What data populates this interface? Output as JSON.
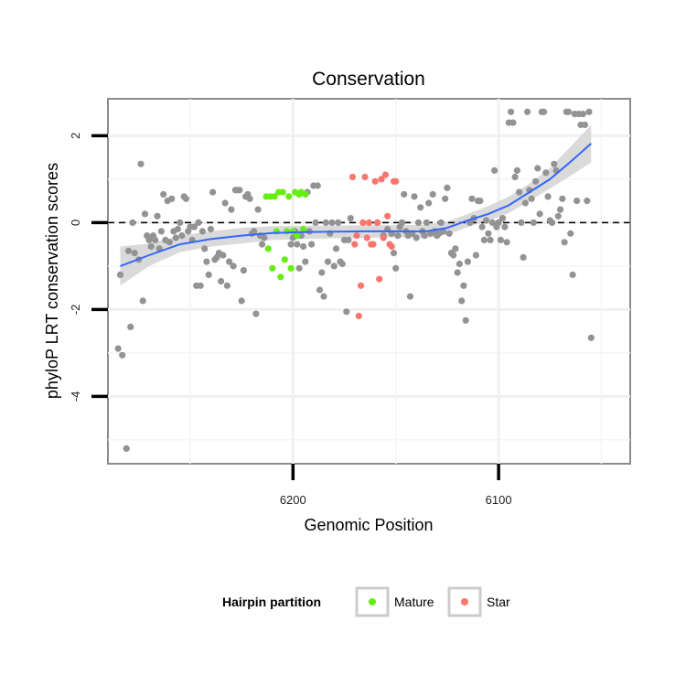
{
  "chart_data": {
    "type": "scatter",
    "title": "Conservation",
    "xlabel": "Genomic Position",
    "ylabel": "phyloP LRT conservation scores",
    "xlim": [
      6290,
      6036
    ],
    "ylim": [
      -5.55,
      2.85
    ],
    "x_reversed": true,
    "x_ticks": [
      6200,
      6100
    ],
    "x_tick_labels": [
      "6200",
      "6100"
    ],
    "y_ticks": [
      2,
      0,
      -2,
      -4
    ],
    "y_tick_labels": [
      "2",
      "0",
      "-2",
      "-4"
    ],
    "grid": true,
    "reference_line": {
      "y": 0,
      "style": "dashed"
    },
    "legend": {
      "title": "Hairpin partition",
      "placement": "bottom",
      "entries": [
        {
          "label": "Mature",
          "color": "#66ee11"
        },
        {
          "label": "Star",
          "color": "#f8766d"
        }
      ]
    },
    "colors": {
      "other": "#939393",
      "Mature": "#66ee11",
      "Star": "#f8766d",
      "smooth": "#3366ff",
      "band": "#d3d3d3"
    },
    "series": [
      {
        "group": "other",
        "points": [
          [
            6285,
            -2.9
          ],
          [
            6284,
            -1.2
          ],
          [
            6283,
            -3.05
          ],
          [
            6281,
            -5.2
          ],
          [
            6280,
            -0.65
          ],
          [
            6279,
            -2.4
          ],
          [
            6278,
            0.0
          ],
          [
            6277,
            -0.7
          ],
          [
            6275,
            -0.85
          ],
          [
            6274,
            1.35
          ],
          [
            6273,
            -1.8
          ],
          [
            6272,
            0.2
          ],
          [
            6271,
            -0.3
          ],
          [
            6270,
            -0.4
          ],
          [
            6269,
            -0.55
          ],
          [
            6268,
            -0.3
          ],
          [
            6267,
            -0.4
          ],
          [
            6266,
            0.15
          ],
          [
            6265,
            -0.6
          ],
          [
            6264,
            -0.2
          ],
          [
            6263,
            0.65
          ],
          [
            6262,
            -0.4
          ],
          [
            6261,
            0.5
          ],
          [
            6260,
            -0.45
          ],
          [
            6259,
            0.55
          ],
          [
            6258,
            -0.2
          ],
          [
            6257,
            -0.35
          ],
          [
            6256,
            -0.15
          ],
          [
            6255,
            0.0
          ],
          [
            6254,
            -0.3
          ],
          [
            6253,
            0.6
          ],
          [
            6252,
            0.55
          ],
          [
            6251,
            -0.2
          ],
          [
            6250,
            -0.1
          ],
          [
            6249,
            -0.4
          ],
          [
            6248,
            -0.1
          ],
          [
            6247,
            -1.45
          ],
          [
            6246,
            0.0
          ],
          [
            6245,
            -1.45
          ],
          [
            6244,
            -0.2
          ],
          [
            6243,
            -0.6
          ],
          [
            6242,
            -0.9
          ],
          [
            6241,
            -1.2
          ],
          [
            6240,
            -0.15
          ],
          [
            6239,
            0.7
          ],
          [
            6238,
            -0.85
          ],
          [
            6237,
            -0.8
          ],
          [
            6236,
            -0.7
          ],
          [
            6235,
            -1.35
          ],
          [
            6234,
            -0.75
          ],
          [
            6233,
            0.45
          ],
          [
            6232,
            -1.45
          ],
          [
            6231,
            -0.9
          ],
          [
            6230,
            0.3
          ],
          [
            6229,
            -1.0
          ],
          [
            6228,
            0.75
          ],
          [
            6227,
            0.75
          ],
          [
            6226,
            0.75
          ],
          [
            6225,
            -1.8
          ],
          [
            6224,
            -1.1
          ],
          [
            6223,
            0.6
          ],
          [
            6222,
            0.65
          ],
          [
            6221,
            0.55
          ],
          [
            6220,
            -0.25
          ],
          [
            6219,
            -0.2
          ],
          [
            6218,
            -2.1
          ],
          [
            6217,
            0.3
          ],
          [
            6216,
            -0.3
          ],
          [
            6215,
            -0.5
          ],
          [
            6214,
            -0.35
          ],
          [
            6201,
            -0.5
          ],
          [
            6200,
            -0.35
          ],
          [
            6199,
            -0.2
          ],
          [
            6198,
            -0.5
          ],
          [
            6197,
            -1.05
          ],
          [
            6196,
            -0.3
          ],
          [
            6195,
            -0.55
          ],
          [
            6194,
            -0.9
          ],
          [
            6193,
            0.7
          ],
          [
            6192,
            -0.2
          ],
          [
            6191,
            -0.5
          ],
          [
            6190,
            0.85
          ],
          [
            6189,
            0.0
          ],
          [
            6188,
            0.85
          ],
          [
            6187,
            -1.55
          ],
          [
            6186,
            -1.15
          ],
          [
            6185,
            -1.7
          ],
          [
            6184,
            0.0
          ],
          [
            6183,
            -0.9
          ],
          [
            6182,
            -0.25
          ],
          [
            6181,
            0.0
          ],
          [
            6180,
            -1.0
          ],
          [
            6179,
            -0.6
          ],
          [
            6178,
            0.0
          ],
          [
            6177,
            -0.9
          ],
          [
            6176,
            -0.95
          ],
          [
            6175,
            -0.4
          ],
          [
            6174,
            -2.05
          ],
          [
            6173,
            -0.4
          ],
          [
            6172,
            0.1
          ],
          [
            6159,
            0.0
          ],
          [
            6156,
            -0.3
          ],
          [
            6154,
            -0.15
          ],
          [
            6152,
            -0.25
          ],
          [
            6151,
            -0.7
          ],
          [
            6150,
            -1.05
          ],
          [
            6149,
            -0.3
          ],
          [
            6148,
            -0.1
          ],
          [
            6147,
            0.0
          ],
          [
            6146,
            0.65
          ],
          [
            6145,
            -0.2
          ],
          [
            6144,
            -0.3
          ],
          [
            6143,
            -1.7
          ],
          [
            6142,
            -0.25
          ],
          [
            6141,
            0.6
          ],
          [
            6140,
            -0.35
          ],
          [
            6139,
            0.0
          ],
          [
            6138,
            0.35
          ],
          [
            6137,
            -0.2
          ],
          [
            6136,
            -0.3
          ],
          [
            6135,
            0.0
          ],
          [
            6134,
            0.45
          ],
          [
            6133,
            -0.25
          ],
          [
            6132,
            0.65
          ],
          [
            6131,
            -0.2
          ],
          [
            6130,
            -0.3
          ],
          [
            6129,
            -0.25
          ],
          [
            6128,
            0.0
          ],
          [
            6127,
            -0.2
          ],
          [
            6126,
            0.55
          ],
          [
            6125,
            0.8
          ],
          [
            6124,
            -0.25
          ],
          [
            6123,
            -0.7
          ],
          [
            6122,
            -0.75
          ],
          [
            6121,
            -0.6
          ],
          [
            6120,
            -1.15
          ],
          [
            6119,
            -0.95
          ],
          [
            6118,
            -1.8
          ],
          [
            6117,
            -1.45
          ],
          [
            6116,
            -2.25
          ],
          [
            6115,
            -0.9
          ],
          [
            6114,
            0.0
          ],
          [
            6113,
            0.55
          ],
          [
            6112,
            0.1
          ],
          [
            6111,
            -0.75
          ],
          [
            6110,
            0.5
          ],
          [
            6109,
            0.5
          ],
          [
            6108,
            -0.1
          ],
          [
            6107,
            -0.4
          ],
          [
            6106,
            0.05
          ],
          [
            6105,
            -0.25
          ],
          [
            6104,
            -0.4
          ],
          [
            6103,
            0.0
          ],
          [
            6102,
            1.2
          ],
          [
            6101,
            -0.1
          ],
          [
            6100,
            0.0
          ],
          [
            6099,
            -0.4
          ],
          [
            6098,
            0.1
          ],
          [
            6097,
            -0.1
          ],
          [
            6096,
            -0.45
          ],
          [
            6095,
            2.3
          ],
          [
            6094,
            2.55
          ],
          [
            6093,
            2.3
          ],
          [
            6092,
            1.05
          ],
          [
            6091,
            1.2
          ],
          [
            6090,
            0.7
          ],
          [
            6089,
            0.0
          ],
          [
            6088,
            -0.8
          ],
          [
            6087,
            0.45
          ],
          [
            6086,
            2.55
          ],
          [
            6085,
            0.75
          ],
          [
            6084,
            0.55
          ],
          [
            6083,
            0.0
          ],
          [
            6082,
            0.95
          ],
          [
            6081,
            1.25
          ],
          [
            6080,
            0.2
          ],
          [
            6079,
            2.55
          ],
          [
            6078,
            2.55
          ],
          [
            6077,
            1.15
          ],
          [
            6076,
            0.6
          ],
          [
            6075,
            0.05
          ],
          [
            6074,
            0.0
          ],
          [
            6073,
            1.35
          ],
          [
            6072,
            1.2
          ],
          [
            6071,
            0.15
          ],
          [
            6070,
            0.3
          ],
          [
            6069,
            0.55
          ],
          [
            6068,
            -0.45
          ],
          [
            6067,
            2.55
          ],
          [
            6066,
            2.55
          ],
          [
            6065,
            -0.25
          ],
          [
            6064,
            -1.2
          ],
          [
            6063,
            2.5
          ],
          [
            6062,
            0.5
          ],
          [
            6061,
            2.5
          ],
          [
            6060,
            2.25
          ],
          [
            6059,
            2.5
          ],
          [
            6058,
            2.25
          ],
          [
            6057,
            0.5
          ],
          [
            6056,
            2.55
          ],
          [
            6055,
            -2.65
          ]
        ]
      },
      {
        "group": "Mature",
        "points": [
          [
            6213,
            0.6
          ],
          [
            6212,
            -0.6
          ],
          [
            6211,
            0.6
          ],
          [
            6210,
            -1.05
          ],
          [
            6209,
            0.6
          ],
          [
            6208,
            -0.2
          ],
          [
            6207,
            0.7
          ],
          [
            6206,
            -1.25
          ],
          [
            6205,
            0.7
          ],
          [
            6204,
            -0.85
          ],
          [
            6203,
            -0.2
          ],
          [
            6202,
            0.6
          ],
          [
            6201,
            -1.05
          ],
          [
            6200,
            -0.2
          ],
          [
            6199,
            0.7
          ],
          [
            6198,
            -0.3
          ],
          [
            6197,
            0.65
          ],
          [
            6196,
            0.7
          ],
          [
            6195,
            -0.15
          ],
          [
            6194,
            0.65
          ]
        ]
      },
      {
        "group": "Star",
        "points": [
          [
            6171,
            1.05
          ],
          [
            6170,
            -0.5
          ],
          [
            6169,
            -0.3
          ],
          [
            6168,
            -2.15
          ],
          [
            6167,
            -1.45
          ],
          [
            6166,
            0.0
          ],
          [
            6165,
            1.05
          ],
          [
            6164,
            -0.35
          ],
          [
            6163,
            0.0
          ],
          [
            6162,
            -0.5
          ],
          [
            6161,
            -0.5
          ],
          [
            6160,
            0.95
          ],
          [
            6159,
            0.0
          ],
          [
            6158,
            -1.3
          ],
          [
            6157,
            1.0
          ],
          [
            6156,
            -0.35
          ],
          [
            6155,
            1.1
          ],
          [
            6154,
            0.15
          ],
          [
            6153,
            -0.5
          ],
          [
            6152,
            -0.55
          ],
          [
            6151,
            0.95
          ],
          [
            6150,
            0.95
          ]
        ]
      }
    ],
    "smooth_curve": [
      [
        6284,
        -1.0
      ],
      [
        6270,
        -0.75
      ],
      [
        6255,
        -0.5
      ],
      [
        6240,
        -0.38
      ],
      [
        6225,
        -0.3
      ],
      [
        6210,
        -0.24
      ],
      [
        6195,
        -0.22
      ],
      [
        6180,
        -0.21
      ],
      [
        6165,
        -0.2
      ],
      [
        6150,
        -0.2
      ],
      [
        6135,
        -0.2
      ],
      [
        6125,
        -0.12
      ],
      [
        6115,
        0.05
      ],
      [
        6105,
        0.2
      ],
      [
        6095,
        0.4
      ],
      [
        6085,
        0.7
      ],
      [
        6075,
        1.0
      ],
      [
        6065,
        1.4
      ],
      [
        6055,
        1.82
      ]
    ],
    "smooth_band": [
      [
        6284,
        -0.55,
        -1.45
      ],
      [
        6270,
        -0.48,
        -1.0
      ],
      [
        6255,
        -0.3,
        -0.68
      ],
      [
        6240,
        -0.2,
        -0.55
      ],
      [
        6225,
        -0.12,
        -0.48
      ],
      [
        6210,
        -0.08,
        -0.4
      ],
      [
        6195,
        -0.07,
        -0.38
      ],
      [
        6180,
        -0.07,
        -0.36
      ],
      [
        6165,
        -0.06,
        -0.35
      ],
      [
        6150,
        -0.06,
        -0.34
      ],
      [
        6135,
        -0.05,
        -0.35
      ],
      [
        6125,
        0.02,
        -0.28
      ],
      [
        6115,
        0.2,
        -0.1
      ],
      [
        6105,
        0.38,
        0.04
      ],
      [
        6095,
        0.6,
        0.22
      ],
      [
        6085,
        0.9,
        0.5
      ],
      [
        6075,
        1.25,
        0.78
      ],
      [
        6065,
        1.75,
        1.08
      ],
      [
        6055,
        2.25,
        1.38
      ]
    ]
  }
}
